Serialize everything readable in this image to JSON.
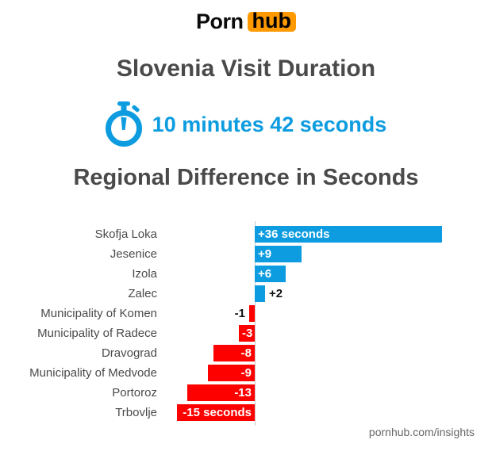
{
  "logo": {
    "part1": "Porn",
    "part2": "hub"
  },
  "title": "Slovenia Visit Duration",
  "duration": {
    "icon": "stopwatch-icon",
    "text": "10 minutes 42 seconds"
  },
  "footer": "pornhub.com/insights",
  "colors": {
    "brand_orange": "#ff9900",
    "accent_blue": "#0d9cdf",
    "accent_red": "#fd0000",
    "title_gray": "#4a4a4a",
    "footer_gray": "#666666",
    "axis_gray": "#c9c9c9"
  },
  "chart_data": {
    "type": "bar",
    "orientation": "horizontal",
    "title": "Regional Difference in Seconds",
    "unit": "seconds",
    "categories": [
      "Skofja Loka",
      "Jesenice",
      "Izola",
      "Zalec",
      "Municipality of Komen",
      "Municipality of Radece",
      "Dravograd",
      "Municipality of Medvode",
      "Portoroz",
      "Trbovlje"
    ],
    "values": [
      36,
      9,
      6,
      2,
      -1,
      -3,
      -8,
      -9,
      -13,
      -15
    ],
    "bar_labels": [
      "+36 seconds",
      "+9",
      "+6",
      "+2",
      "-1",
      "-3",
      "-8",
      "-9",
      "-13",
      "-15 seconds"
    ],
    "positive_color": "#0d9cdf",
    "negative_color": "#fd0000",
    "xlim": [
      -15,
      36
    ],
    "grid": false,
    "legend": false,
    "baseline_axis": true
  }
}
